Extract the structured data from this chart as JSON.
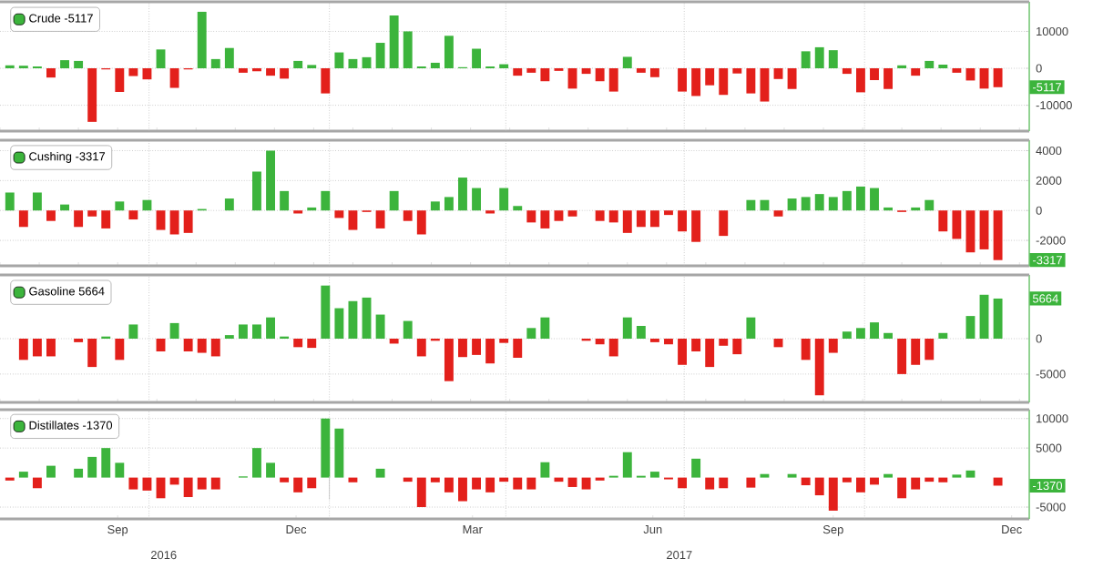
{
  "chart_data": [
    {
      "type": "bar",
      "xlim": [
        "2016-07-17",
        "2017-12-24"
      ],
      "ylim": [
        -17000,
        18000
      ],
      "yticks": [
        -10000,
        0,
        10000
      ],
      "grid": true,
      "legend": "top left",
      "tick_labels": "y",
      "xticks": [
        {
          "value": "2016-10-01",
          "label": null
        },
        {
          "value": "2017-01-01",
          "label": null
        },
        {
          "value": "2017-04-01",
          "label": null
        },
        {
          "value": "2017-07-01",
          "label": null
        },
        {
          "value": "2017-10-01",
          "label": null
        }
      ],
      "x": [
        "2016-07-22",
        "2016-07-29",
        "2016-08-05",
        "2016-08-12",
        "2016-08-19",
        "2016-08-26",
        "2016-09-02",
        "2016-09-09",
        "2016-09-16",
        "2016-09-23",
        "2016-09-30",
        "2016-10-07",
        "2016-10-14",
        "2016-10-21",
        "2016-10-28",
        "2016-11-04",
        "2016-11-11",
        "2016-11-18",
        "2016-11-25",
        "2016-12-02",
        "2016-12-09",
        "2016-12-16",
        "2016-12-23",
        "2016-12-30",
        "2017-01-06",
        "2017-01-13",
        "2017-01-20",
        "2017-01-27",
        "2017-02-03",
        "2017-02-10",
        "2017-02-17",
        "2017-02-24",
        "2017-03-03",
        "2017-03-10",
        "2017-03-17",
        "2017-03-24",
        "2017-03-31",
        "2017-04-07",
        "2017-04-14",
        "2017-04-21",
        "2017-04-28",
        "2017-05-05",
        "2017-05-12",
        "2017-05-19",
        "2017-05-26",
        "2017-06-02",
        "2017-06-09",
        "2017-06-16",
        "2017-06-23",
        "2017-06-30",
        "2017-07-07",
        "2017-07-14",
        "2017-07-21",
        "2017-07-28",
        "2017-08-04",
        "2017-08-11",
        "2017-08-18",
        "2017-08-25",
        "2017-09-01",
        "2017-09-08",
        "2017-09-15",
        "2017-09-22",
        "2017-09-29",
        "2017-10-06",
        "2017-10-13",
        "2017-10-20",
        "2017-10-27",
        "2017-11-03",
        "2017-11-10",
        "2017-11-17",
        "2017-11-24",
        "2017-12-01",
        "2017-12-08"
      ],
      "series": [
        {
          "name": "Crude -5117",
          "color": "#3cb43c",
          "values": [
            800,
            700,
            500,
            -2500,
            2200,
            2000,
            -14500,
            -300,
            -6400,
            -2100,
            -3000,
            5100,
            -5300,
            -300,
            15300,
            2500,
            5500,
            -1200,
            -800,
            -2000,
            -2800,
            2000,
            900,
            -6800,
            4300,
            2500,
            3000,
            6900,
            14300,
            10000,
            500,
            1500,
            8800,
            300,
            5300,
            500,
            1100,
            -2000,
            -1200,
            -3500,
            -700,
            -5500,
            -1500,
            -3500,
            -6300,
            3100,
            -1200,
            -2400,
            0,
            -6300,
            -7500,
            -4600,
            -7200,
            -1400,
            -6800,
            -9000,
            -2900,
            -5600,
            4600,
            5700,
            4900,
            -1500,
            -6500,
            -3200,
            -5600,
            800,
            -2000,
            2000,
            1000,
            -1200,
            -3300,
            -5500,
            -5117
          ],
          "colors": [
            "#3cb43c",
            "#3cb43c",
            "#3cb43c",
            "#e3201b",
            "#3cb43c",
            "#3cb43c",
            "#e3201b",
            "#e3201b",
            "#e3201b",
            "#e3201b",
            "#e3201b",
            "#3cb43c",
            "#e3201b",
            "#e3201b",
            "#3cb43c",
            "#3cb43c",
            "#3cb43c",
            "#e3201b",
            "#e3201b",
            "#e3201b",
            "#e3201b",
            "#3cb43c",
            "#3cb43c",
            "#e3201b",
            "#3cb43c",
            "#3cb43c",
            "#3cb43c",
            "#3cb43c",
            "#3cb43c",
            "#3cb43c",
            "#3cb43c",
            "#3cb43c",
            "#3cb43c",
            "#3cb43c",
            "#3cb43c",
            "#3cb43c",
            "#3cb43c",
            "#e3201b",
            "#e3201b",
            "#e3201b",
            "#e3201b",
            "#e3201b",
            "#e3201b",
            "#e3201b",
            "#e3201b",
            "#3cb43c",
            "#e3201b",
            "#e3201b",
            "#3cb43c",
            "#e3201b",
            "#e3201b",
            "#e3201b",
            "#e3201b",
            "#e3201b",
            "#e3201b",
            "#e3201b",
            "#e3201b",
            "#e3201b",
            "#3cb43c",
            "#3cb43c",
            "#3cb43c",
            "#e3201b",
            "#e3201b",
            "#e3201b",
            "#e3201b",
            "#3cb43c",
            "#e3201b",
            "#3cb43c",
            "#3cb43c",
            "#e3201b",
            "#e3201b",
            "#e3201b",
            "#e3201b"
          ]
        }
      ],
      "annotations": [
        {
          "text": "-5117",
          "x": "2017-12-08",
          "y": -5117
        }
      ]
    },
    {
      "type": "bar",
      "xlim": [
        "2016-07-17",
        "2017-12-24"
      ],
      "ylim": [
        -3700,
        4700
      ],
      "yticks": [
        -2000,
        0,
        2000,
        4000
      ],
      "grid": true,
      "legend": "top left",
      "tick_labels": "y",
      "xticks": [
        {
          "value": "2016-10-01",
          "label": null
        },
        {
          "value": "2017-01-01",
          "label": null
        },
        {
          "value": "2017-04-01",
          "label": null
        },
        {
          "value": "2017-07-01",
          "label": null
        },
        {
          "value": "2017-10-01",
          "label": null
        }
      ],
      "x": [
        "2016-07-22",
        "2016-07-29",
        "2016-08-05",
        "2016-08-12",
        "2016-08-19",
        "2016-08-26",
        "2016-09-02",
        "2016-09-09",
        "2016-09-16",
        "2016-09-23",
        "2016-09-30",
        "2016-10-07",
        "2016-10-14",
        "2016-10-21",
        "2016-10-28",
        "2016-11-04",
        "2016-11-11",
        "2016-11-18",
        "2016-11-25",
        "2016-12-02",
        "2016-12-09",
        "2016-12-16",
        "2016-12-23",
        "2016-12-30",
        "2017-01-06",
        "2017-01-13",
        "2017-01-20",
        "2017-01-27",
        "2017-02-03",
        "2017-02-10",
        "2017-02-17",
        "2017-02-24",
        "2017-03-03",
        "2017-03-10",
        "2017-03-17",
        "2017-03-24",
        "2017-03-31",
        "2017-04-07",
        "2017-04-14",
        "2017-04-21",
        "2017-04-28",
        "2017-05-05",
        "2017-05-12",
        "2017-05-19",
        "2017-05-26",
        "2017-06-02",
        "2017-06-09",
        "2017-06-16",
        "2017-06-23",
        "2017-06-30",
        "2017-07-07",
        "2017-07-14",
        "2017-07-21",
        "2017-07-28",
        "2017-08-04",
        "2017-08-11",
        "2017-08-18",
        "2017-08-25",
        "2017-09-01",
        "2017-09-08",
        "2017-09-15",
        "2017-09-22",
        "2017-09-29",
        "2017-10-06",
        "2017-10-13",
        "2017-10-20",
        "2017-10-27",
        "2017-11-03",
        "2017-11-10",
        "2017-11-17",
        "2017-11-24",
        "2017-12-01",
        "2017-12-08"
      ],
      "series": [
        {
          "name": "Cushing -3317",
          "color": "#3cb43c",
          "values": [
            1200,
            -1100,
            1200,
            -700,
            400,
            -1100,
            -400,
            -1200,
            600,
            -600,
            700,
            -1300,
            -1600,
            -1500,
            100,
            0,
            800,
            0,
            2600,
            4000,
            1300,
            -200,
            200,
            1300,
            -500,
            -1300,
            -100,
            -1200,
            1300,
            -700,
            -1600,
            600,
            900,
            2200,
            1500,
            -200,
            1500,
            300,
            -800,
            -1200,
            -700,
            -400,
            0,
            -700,
            -800,
            -1500,
            -1100,
            -1100,
            -300,
            -1400,
            -2100,
            0,
            -1700,
            0,
            700,
            700,
            -400,
            800,
            900,
            1100,
            900,
            1300,
            1600,
            1500,
            200,
            -100,
            200,
            700,
            -1400,
            -1900,
            -2800,
            -2600,
            -3317
          ],
          "colors": [
            "#3cb43c",
            "#e3201b",
            "#3cb43c",
            "#e3201b",
            "#3cb43c",
            "#e3201b",
            "#e3201b",
            "#e3201b",
            "#3cb43c",
            "#e3201b",
            "#3cb43c",
            "#e3201b",
            "#e3201b",
            "#e3201b",
            "#3cb43c",
            "#3cb43c",
            "#3cb43c",
            "#3cb43c",
            "#3cb43c",
            "#3cb43c",
            "#3cb43c",
            "#e3201b",
            "#3cb43c",
            "#3cb43c",
            "#e3201b",
            "#e3201b",
            "#e3201b",
            "#e3201b",
            "#3cb43c",
            "#e3201b",
            "#e3201b",
            "#3cb43c",
            "#3cb43c",
            "#3cb43c",
            "#3cb43c",
            "#e3201b",
            "#3cb43c",
            "#3cb43c",
            "#e3201b",
            "#e3201b",
            "#e3201b",
            "#e3201b",
            "#3cb43c",
            "#e3201b",
            "#e3201b",
            "#e3201b",
            "#e3201b",
            "#e3201b",
            "#e3201b",
            "#e3201b",
            "#e3201b",
            "#3cb43c",
            "#e3201b",
            "#3cb43c",
            "#3cb43c",
            "#3cb43c",
            "#e3201b",
            "#3cb43c",
            "#3cb43c",
            "#3cb43c",
            "#3cb43c",
            "#3cb43c",
            "#3cb43c",
            "#3cb43c",
            "#3cb43c",
            "#e3201b",
            "#3cb43c",
            "#3cb43c",
            "#e3201b",
            "#e3201b",
            "#e3201b",
            "#e3201b",
            "#e3201b"
          ]
        }
      ],
      "annotations": [
        {
          "text": "-3317",
          "x": "2017-12-08",
          "y": -3317
        }
      ]
    },
    {
      "type": "bar",
      "xlim": [
        "2016-07-17",
        "2017-12-24"
      ],
      "ylim": [
        -9000,
        9000
      ],
      "yticks": [
        -5000,
        0
      ],
      "grid": true,
      "legend": "top left",
      "tick_labels": "y",
      "xticks": [
        {
          "value": "2016-10-01",
          "label": null
        },
        {
          "value": "2017-01-01",
          "label": null
        },
        {
          "value": "2017-04-01",
          "label": null
        },
        {
          "value": "2017-07-01",
          "label": null
        },
        {
          "value": "2017-10-01",
          "label": null
        }
      ],
      "x": [
        "2016-07-22",
        "2016-07-29",
        "2016-08-05",
        "2016-08-12",
        "2016-08-19",
        "2016-08-26",
        "2016-09-02",
        "2016-09-09",
        "2016-09-16",
        "2016-09-23",
        "2016-09-30",
        "2016-10-07",
        "2016-10-14",
        "2016-10-21",
        "2016-10-28",
        "2016-11-04",
        "2016-11-11",
        "2016-11-18",
        "2016-11-25",
        "2016-12-02",
        "2016-12-09",
        "2016-12-16",
        "2016-12-23",
        "2016-12-30",
        "2017-01-06",
        "2017-01-13",
        "2017-01-20",
        "2017-01-27",
        "2017-02-03",
        "2017-02-10",
        "2017-02-17",
        "2017-02-24",
        "2017-03-03",
        "2017-03-10",
        "2017-03-17",
        "2017-03-24",
        "2017-03-31",
        "2017-04-07",
        "2017-04-14",
        "2017-04-21",
        "2017-04-28",
        "2017-05-05",
        "2017-05-12",
        "2017-05-19",
        "2017-05-26",
        "2017-06-02",
        "2017-06-09",
        "2017-06-16",
        "2017-06-23",
        "2017-06-30",
        "2017-07-07",
        "2017-07-14",
        "2017-07-21",
        "2017-07-28",
        "2017-08-04",
        "2017-08-11",
        "2017-08-18",
        "2017-08-25",
        "2017-09-01",
        "2017-09-08",
        "2017-09-15",
        "2017-09-22",
        "2017-09-29",
        "2017-10-06",
        "2017-10-13",
        "2017-10-20",
        "2017-10-27",
        "2017-11-03",
        "2017-11-10",
        "2017-11-17",
        "2017-11-24",
        "2017-12-01",
        "2017-12-08"
      ],
      "series": [
        {
          "name": "Gasoline 5664",
          "color": "#3cb43c",
          "values": [
            0,
            -3000,
            -2500,
            -2500,
            0,
            -500,
            -4000,
            300,
            -3000,
            2000,
            0,
            -1800,
            2200,
            -1800,
            -2000,
            -2500,
            500,
            2000,
            2000,
            3000,
            300,
            -1200,
            -1300,
            7500,
            4300,
            5300,
            5800,
            3400,
            -700,
            2500,
            -2500,
            -300,
            -6000,
            -2600,
            -2300,
            -3500,
            -600,
            -2700,
            1500,
            3000,
            0,
            0,
            -300,
            -800,
            -2500,
            3000,
            1800,
            -500,
            -800,
            -3700,
            -1800,
            -4000,
            -1000,
            -2200,
            3000,
            0,
            -1200,
            0,
            -3000,
            -8000,
            -2000,
            1000,
            1500,
            2300,
            800,
            -5000,
            -3700,
            -3000,
            800,
            0,
            3200,
            6200,
            5664
          ],
          "colors": [
            "#3cb43c",
            "#e3201b",
            "#e3201b",
            "#e3201b",
            "#3cb43c",
            "#e3201b",
            "#e3201b",
            "#3cb43c",
            "#e3201b",
            "#3cb43c",
            "#3cb43c",
            "#e3201b",
            "#3cb43c",
            "#e3201b",
            "#e3201b",
            "#e3201b",
            "#3cb43c",
            "#3cb43c",
            "#3cb43c",
            "#3cb43c",
            "#3cb43c",
            "#e3201b",
            "#e3201b",
            "#3cb43c",
            "#3cb43c",
            "#3cb43c",
            "#3cb43c",
            "#3cb43c",
            "#e3201b",
            "#3cb43c",
            "#e3201b",
            "#e3201b",
            "#e3201b",
            "#e3201b",
            "#e3201b",
            "#e3201b",
            "#e3201b",
            "#e3201b",
            "#3cb43c",
            "#3cb43c",
            "#3cb43c",
            "#3cb43c",
            "#e3201b",
            "#e3201b",
            "#e3201b",
            "#3cb43c",
            "#3cb43c",
            "#e3201b",
            "#e3201b",
            "#e3201b",
            "#e3201b",
            "#e3201b",
            "#e3201b",
            "#e3201b",
            "#3cb43c",
            "#3cb43c",
            "#e3201b",
            "#3cb43c",
            "#e3201b",
            "#e3201b",
            "#e3201b",
            "#3cb43c",
            "#3cb43c",
            "#3cb43c",
            "#3cb43c",
            "#e3201b",
            "#e3201b",
            "#e3201b",
            "#3cb43c",
            "#3cb43c",
            "#3cb43c",
            "#3cb43c",
            "#3cb43c"
          ]
        }
      ],
      "annotations": [
        {
          "text": "5664",
          "x": "2017-12-08",
          "y": 5664
        }
      ]
    },
    {
      "type": "bar",
      "xlim": [
        "2016-07-17",
        "2017-12-24"
      ],
      "ylim": [
        -7000,
        11500
      ],
      "yticks": [
        -5000,
        5000,
        10000
      ],
      "grid": true,
      "legend": "top left",
      "xticks": [
        {
          "value": "2016-09-15",
          "label": "Sep"
        },
        {
          "value": "2016-10-01",
          "label": null
        },
        {
          "value": "2016-12-15",
          "label": "Dec"
        },
        {
          "value": "2017-01-01",
          "label": null
        },
        {
          "value": "2017-03-15",
          "label": "Mar"
        },
        {
          "value": "2017-04-01",
          "label": null
        },
        {
          "value": "2017-06-15",
          "label": "Jun"
        },
        {
          "value": "2017-07-01",
          "label": null
        },
        {
          "value": "2017-09-15",
          "label": "Sep"
        },
        {
          "value": "2017-10-01",
          "label": null
        },
        {
          "value": "2017-12-15",
          "label": "Dec"
        }
      ],
      "x": [
        "2016-07-22",
        "2016-07-29",
        "2016-08-05",
        "2016-08-12",
        "2016-08-19",
        "2016-08-26",
        "2016-09-02",
        "2016-09-09",
        "2016-09-16",
        "2016-09-23",
        "2016-09-30",
        "2016-10-07",
        "2016-10-14",
        "2016-10-21",
        "2016-10-28",
        "2016-11-04",
        "2016-11-11",
        "2016-11-18",
        "2016-11-25",
        "2016-12-02",
        "2016-12-09",
        "2016-12-16",
        "2016-12-23",
        "2016-12-30",
        "2017-01-06",
        "2017-01-13",
        "2017-01-20",
        "2017-01-27",
        "2017-02-03",
        "2017-02-10",
        "2017-02-17",
        "2017-02-24",
        "2017-03-03",
        "2017-03-10",
        "2017-03-17",
        "2017-03-24",
        "2017-03-31",
        "2017-04-07",
        "2017-04-14",
        "2017-04-21",
        "2017-04-28",
        "2017-05-05",
        "2017-05-12",
        "2017-05-19",
        "2017-05-26",
        "2017-06-02",
        "2017-06-09",
        "2017-06-16",
        "2017-06-23",
        "2017-06-30",
        "2017-07-07",
        "2017-07-14",
        "2017-07-21",
        "2017-07-28",
        "2017-08-04",
        "2017-08-11",
        "2017-08-18",
        "2017-08-25",
        "2017-09-01",
        "2017-09-08",
        "2017-09-15",
        "2017-09-22",
        "2017-09-29",
        "2017-10-06",
        "2017-10-13",
        "2017-10-20",
        "2017-10-27",
        "2017-11-03",
        "2017-11-10",
        "2017-11-17",
        "2017-11-24",
        "2017-12-01",
        "2017-12-08"
      ],
      "series": [
        {
          "name": "Distillates -1370",
          "color": "#3cb43c",
          "values": [
            -500,
            1000,
            -1800,
            2000,
            0,
            1500,
            3500,
            5000,
            2500,
            -2000,
            -2200,
            -3500,
            -1200,
            -3300,
            -2000,
            -2000,
            0,
            200,
            5000,
            2500,
            -800,
            -2500,
            -1800,
            10000,
            8300,
            -800,
            0,
            1500,
            0,
            -700,
            -5000,
            -800,
            -2500,
            -4000,
            -2000,
            -2500,
            -700,
            -2000,
            -2000,
            2600,
            -700,
            -1600,
            -2000,
            -500,
            300,
            4300,
            300,
            1000,
            -300,
            -1800,
            3200,
            -2000,
            -1800,
            0,
            -1700,
            600,
            0,
            600,
            -1300,
            -3000,
            -5600,
            -800,
            -2500,
            -1200,
            600,
            -3500,
            -2000,
            -700,
            -800,
            500,
            1200,
            0,
            -1370
          ],
          "colors": [
            "#e3201b",
            "#3cb43c",
            "#e3201b",
            "#3cb43c",
            "#3cb43c",
            "#3cb43c",
            "#3cb43c",
            "#3cb43c",
            "#3cb43c",
            "#e3201b",
            "#e3201b",
            "#e3201b",
            "#e3201b",
            "#e3201b",
            "#e3201b",
            "#e3201b",
            "#3cb43c",
            "#3cb43c",
            "#3cb43c",
            "#3cb43c",
            "#e3201b",
            "#e3201b",
            "#e3201b",
            "#3cb43c",
            "#3cb43c",
            "#e3201b",
            "#3cb43c",
            "#3cb43c",
            "#3cb43c",
            "#e3201b",
            "#e3201b",
            "#e3201b",
            "#e3201b",
            "#e3201b",
            "#e3201b",
            "#e3201b",
            "#e3201b",
            "#e3201b",
            "#e3201b",
            "#3cb43c",
            "#e3201b",
            "#e3201b",
            "#e3201b",
            "#e3201b",
            "#3cb43c",
            "#3cb43c",
            "#3cb43c",
            "#3cb43c",
            "#e3201b",
            "#e3201b",
            "#3cb43c",
            "#e3201b",
            "#e3201b",
            "#3cb43c",
            "#e3201b",
            "#3cb43c",
            "#3cb43c",
            "#3cb43c",
            "#e3201b",
            "#e3201b",
            "#e3201b",
            "#e3201b",
            "#e3201b",
            "#e3201b",
            "#3cb43c",
            "#e3201b",
            "#e3201b",
            "#e3201b",
            "#e3201b",
            "#3cb43c",
            "#3cb43c",
            "#3cb43c",
            "#e3201b"
          ]
        }
      ],
      "annotations": [
        {
          "text": "-1370",
          "x": "2017-12-08",
          "y": -1370
        },
        "2016",
        "2017"
      ]
    }
  ]
}
